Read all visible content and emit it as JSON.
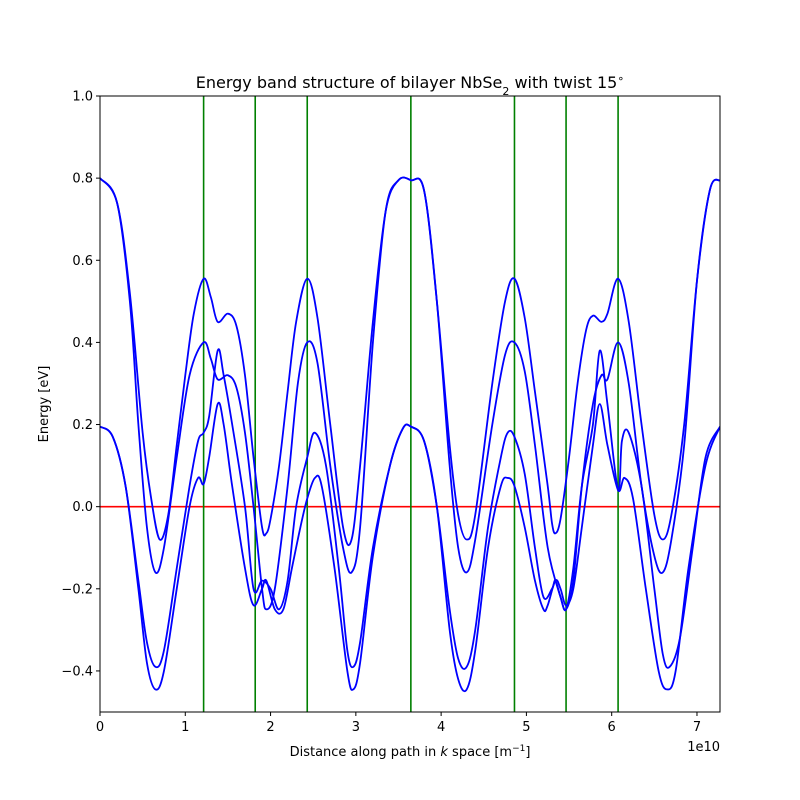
{
  "chart_data": {
    "type": "line",
    "title": "Energy band structure of bilayer NbSe",
    "title_subscript": "2",
    "title_suffix": " with twist 15",
    "title_superscript": "∘",
    "xlabel_prefix": "Distance along path in ",
    "xlabel_k": "k",
    "xlabel_space": " space [m",
    "xlabel_exp": "−1",
    "xlabel_suffix": "]",
    "ylabel": "Energy [eV]",
    "x_offset_label": "1e10",
    "xlim": [
      0,
      7.27
    ],
    "ylim": [
      -0.5,
      1.0
    ],
    "grid": false,
    "x_ticks": [
      0,
      1,
      2,
      3,
      4,
      5,
      6,
      7
    ],
    "x_tick_labels": [
      "0",
      "1",
      "2",
      "3",
      "4",
      "5",
      "6",
      "7"
    ],
    "y_ticks": [
      -0.4,
      -0.2,
      0.0,
      0.2,
      0.4,
      0.6,
      0.8,
      1.0
    ],
    "y_tick_labels": [
      "−0.4",
      "−0.2",
      "0.0",
      "0.2",
      "0.4",
      "0.6",
      "0.8",
      "1.0"
    ],
    "fermi_level": {
      "y": 0.0,
      "color": "#ff0000"
    },
    "kpoint_lines": {
      "x": [
        1.215,
        1.82,
        2.43,
        3.645,
        4.86,
        5.465,
        6.075
      ],
      "color": "#008000"
    },
    "band_color": "#0000ff",
    "series": [
      {
        "points": [
          [
            0,
            0.8
          ],
          [
            0.2,
            0.74
          ],
          [
            0.35,
            0.52
          ],
          [
            0.5,
            0.18
          ],
          [
            0.6,
            0.02
          ],
          [
            0.7,
            -0.08
          ],
          [
            0.8,
            -0.02
          ],
          [
            0.9,
            0.15
          ],
          [
            1.0,
            0.32
          ],
          [
            1.1,
            0.47
          ],
          [
            1.215,
            0.555
          ],
          [
            1.3,
            0.51
          ],
          [
            1.38,
            0.45
          ],
          [
            1.5,
            0.47
          ],
          [
            1.6,
            0.44
          ],
          [
            1.7,
            0.32
          ],
          [
            1.8,
            0.12
          ],
          [
            1.9,
            -0.05
          ],
          [
            1.95,
            -0.065
          ],
          [
            2.0,
            -0.03
          ],
          [
            2.1,
            0.1
          ],
          [
            2.2,
            0.28
          ],
          [
            2.3,
            0.45
          ],
          [
            2.43,
            0.555
          ],
          [
            2.55,
            0.46
          ],
          [
            2.7,
            0.2
          ],
          [
            2.85,
            -0.05
          ],
          [
            2.95,
            -0.08
          ],
          [
            3.05,
            0.1
          ],
          [
            3.2,
            0.45
          ],
          [
            3.35,
            0.72
          ],
          [
            3.5,
            0.795
          ],
          [
            3.645,
            0.795
          ],
          [
            3.8,
            0.77
          ],
          [
            3.95,
            0.5
          ],
          [
            4.1,
            0.15
          ],
          [
            4.2,
            -0.02
          ],
          [
            4.3,
            -0.08
          ],
          [
            4.4,
            -0.02
          ],
          [
            4.6,
            0.3
          ],
          [
            4.75,
            0.5
          ],
          [
            4.86,
            0.555
          ],
          [
            4.98,
            0.46
          ],
          [
            5.1,
            0.28
          ],
          [
            5.25,
            0.05
          ],
          [
            5.3,
            -0.04
          ],
          [
            5.34,
            -0.065
          ],
          [
            5.4,
            -0.03
          ],
          [
            5.5,
            0.12
          ],
          [
            5.6,
            0.3
          ],
          [
            5.7,
            0.43
          ],
          [
            5.78,
            0.465
          ],
          [
            5.88,
            0.45
          ],
          [
            5.95,
            0.47
          ],
          [
            6.075,
            0.555
          ],
          [
            6.2,
            0.45
          ],
          [
            6.35,
            0.2
          ],
          [
            6.5,
            -0.02
          ],
          [
            6.6,
            -0.08
          ],
          [
            6.7,
            -0.02
          ],
          [
            6.85,
            0.2
          ],
          [
            7.0,
            0.55
          ],
          [
            7.15,
            0.77
          ],
          [
            7.27,
            0.795
          ]
        ]
      },
      {
        "points": [
          [
            0,
            0.8
          ],
          [
            0.2,
            0.74
          ],
          [
            0.35,
            0.5
          ],
          [
            0.45,
            0.2
          ],
          [
            0.55,
            -0.05
          ],
          [
            0.65,
            -0.16
          ],
          [
            0.75,
            -0.1
          ],
          [
            0.9,
            0.12
          ],
          [
            1.05,
            0.32
          ],
          [
            1.215,
            0.4
          ],
          [
            1.3,
            0.36
          ],
          [
            1.38,
            0.31
          ],
          [
            1.5,
            0.32
          ],
          [
            1.6,
            0.29
          ],
          [
            1.7,
            0.18
          ],
          [
            1.8,
            0.0
          ],
          [
            1.9,
            -0.2
          ],
          [
            1.95,
            -0.25
          ],
          [
            2.05,
            -0.2
          ],
          [
            2.2,
            0.05
          ],
          [
            2.32,
            0.3
          ],
          [
            2.43,
            0.4
          ],
          [
            2.55,
            0.35
          ],
          [
            2.7,
            0.1
          ],
          [
            2.85,
            -0.1
          ],
          [
            2.95,
            -0.16
          ],
          [
            3.05,
            -0.05
          ],
          [
            3.2,
            0.4
          ],
          [
            3.35,
            0.72
          ],
          [
            3.5,
            0.795
          ],
          [
            3.645,
            0.795
          ],
          [
            3.8,
            0.77
          ],
          [
            3.95,
            0.5
          ],
          [
            4.1,
            0.1
          ],
          [
            4.2,
            -0.1
          ],
          [
            4.3,
            -0.16
          ],
          [
            4.4,
            -0.08
          ],
          [
            4.6,
            0.2
          ],
          [
            4.75,
            0.37
          ],
          [
            4.86,
            0.4
          ],
          [
            4.98,
            0.33
          ],
          [
            5.1,
            0.15
          ],
          [
            5.25,
            -0.1
          ],
          [
            5.4,
            -0.22
          ],
          [
            5.465,
            -0.25
          ],
          [
            5.55,
            -0.18
          ],
          [
            5.65,
            0.05
          ],
          [
            5.78,
            0.25
          ],
          [
            5.88,
            0.32
          ],
          [
            5.95,
            0.31
          ],
          [
            6.075,
            0.4
          ],
          [
            6.2,
            0.3
          ],
          [
            6.35,
            0.05
          ],
          [
            6.5,
            -0.12
          ],
          [
            6.6,
            -0.16
          ],
          [
            6.7,
            -0.08
          ],
          [
            6.85,
            0.15
          ],
          [
            7.0,
            0.55
          ],
          [
            7.15,
            0.77
          ],
          [
            7.27,
            0.795
          ]
        ]
      },
      {
        "points": [
          [
            0,
            0.195
          ],
          [
            0.15,
            0.17
          ],
          [
            0.3,
            0.05
          ],
          [
            0.45,
            -0.18
          ],
          [
            0.55,
            -0.33
          ],
          [
            0.65,
            -0.39
          ],
          [
            0.75,
            -0.35
          ],
          [
            0.9,
            -0.15
          ],
          [
            1.05,
            0.05
          ],
          [
            1.15,
            0.16
          ],
          [
            1.215,
            0.18
          ],
          [
            1.28,
            0.22
          ],
          [
            1.38,
            0.38
          ],
          [
            1.45,
            0.32
          ],
          [
            1.55,
            0.2
          ],
          [
            1.7,
            0.0
          ],
          [
            1.8,
            -0.2
          ],
          [
            1.9,
            -0.18
          ],
          [
            2.0,
            -0.2
          ],
          [
            2.1,
            -0.25
          ],
          [
            2.2,
            -0.18
          ],
          [
            2.3,
            0.0
          ],
          [
            2.43,
            0.12
          ],
          [
            2.52,
            0.18
          ],
          [
            2.65,
            0.1
          ],
          [
            2.8,
            -0.15
          ],
          [
            2.9,
            -0.35
          ],
          [
            2.97,
            -0.39
          ],
          [
            3.05,
            -0.33
          ],
          [
            3.2,
            -0.1
          ],
          [
            3.4,
            0.1
          ],
          [
            3.55,
            0.19
          ],
          [
            3.645,
            0.195
          ],
          [
            3.8,
            0.16
          ],
          [
            3.95,
            0.0
          ],
          [
            4.1,
            -0.25
          ],
          [
            4.2,
            -0.37
          ],
          [
            4.3,
            -0.39
          ],
          [
            4.4,
            -0.3
          ],
          [
            4.55,
            -0.05
          ],
          [
            4.7,
            0.12
          ],
          [
            4.78,
            0.18
          ],
          [
            4.86,
            0.17
          ],
          [
            4.98,
            0.08
          ],
          [
            5.1,
            -0.1
          ],
          [
            5.2,
            -0.22
          ],
          [
            5.3,
            -0.2
          ],
          [
            5.34,
            -0.18
          ],
          [
            5.4,
            -0.22
          ],
          [
            5.465,
            -0.25
          ],
          [
            5.55,
            -0.15
          ],
          [
            5.65,
            0.05
          ],
          [
            5.78,
            0.2
          ],
          [
            5.86,
            0.38
          ],
          [
            5.95,
            0.25
          ],
          [
            6.075,
            0.04
          ],
          [
            6.12,
            0.16
          ],
          [
            6.2,
            0.18
          ],
          [
            6.35,
            0.05
          ],
          [
            6.5,
            -0.2
          ],
          [
            6.6,
            -0.36
          ],
          [
            6.68,
            -0.39
          ],
          [
            6.8,
            -0.32
          ],
          [
            6.95,
            -0.1
          ],
          [
            7.1,
            0.12
          ],
          [
            7.27,
            0.195
          ]
        ]
      },
      {
        "points": [
          [
            0,
            0.195
          ],
          [
            0.15,
            0.17
          ],
          [
            0.3,
            0.05
          ],
          [
            0.45,
            -0.2
          ],
          [
            0.55,
            -0.38
          ],
          [
            0.65,
            -0.445
          ],
          [
            0.75,
            -0.4
          ],
          [
            0.9,
            -0.2
          ],
          [
            1.05,
            0.0
          ],
          [
            1.15,
            0.07
          ],
          [
            1.215,
            0.055
          ],
          [
            1.28,
            0.12
          ],
          [
            1.38,
            0.25
          ],
          [
            1.45,
            0.2
          ],
          [
            1.55,
            0.05
          ],
          [
            1.7,
            -0.15
          ],
          [
            1.8,
            -0.24
          ],
          [
            1.9,
            -0.2
          ],
          [
            1.95,
            -0.18
          ],
          [
            2.05,
            -0.25
          ],
          [
            2.15,
            -0.25
          ],
          [
            2.25,
            -0.15
          ],
          [
            2.35,
            -0.05
          ],
          [
            2.43,
            0.02
          ],
          [
            2.52,
            0.07
          ],
          [
            2.6,
            0.05
          ],
          [
            2.75,
            -0.15
          ],
          [
            2.9,
            -0.4
          ],
          [
            2.97,
            -0.445
          ],
          [
            3.05,
            -0.38
          ],
          [
            3.2,
            -0.12
          ],
          [
            3.4,
            0.1
          ],
          [
            3.55,
            0.19
          ],
          [
            3.645,
            0.195
          ],
          [
            3.8,
            0.16
          ],
          [
            3.95,
            0.0
          ],
          [
            4.1,
            -0.3
          ],
          [
            4.2,
            -0.42
          ],
          [
            4.3,
            -0.445
          ],
          [
            4.4,
            -0.35
          ],
          [
            4.55,
            -0.1
          ],
          [
            4.7,
            0.05
          ],
          [
            4.78,
            0.07
          ],
          [
            4.86,
            0.05
          ],
          [
            4.98,
            -0.05
          ],
          [
            5.1,
            -0.18
          ],
          [
            5.2,
            -0.25
          ],
          [
            5.25,
            -0.24
          ],
          [
            5.34,
            -0.18
          ],
          [
            5.4,
            -0.2
          ],
          [
            5.465,
            -0.24
          ],
          [
            5.55,
            -0.2
          ],
          [
            5.65,
            -0.05
          ],
          [
            5.78,
            0.15
          ],
          [
            5.86,
            0.25
          ],
          [
            5.95,
            0.15
          ],
          [
            6.075,
            0.04
          ],
          [
            6.15,
            0.07
          ],
          [
            6.25,
            0.02
          ],
          [
            6.4,
            -0.2
          ],
          [
            6.55,
            -0.4
          ],
          [
            6.65,
            -0.445
          ],
          [
            6.75,
            -0.4
          ],
          [
            6.9,
            -0.15
          ],
          [
            7.1,
            0.1
          ],
          [
            7.27,
            0.195
          ]
        ]
      }
    ]
  }
}
